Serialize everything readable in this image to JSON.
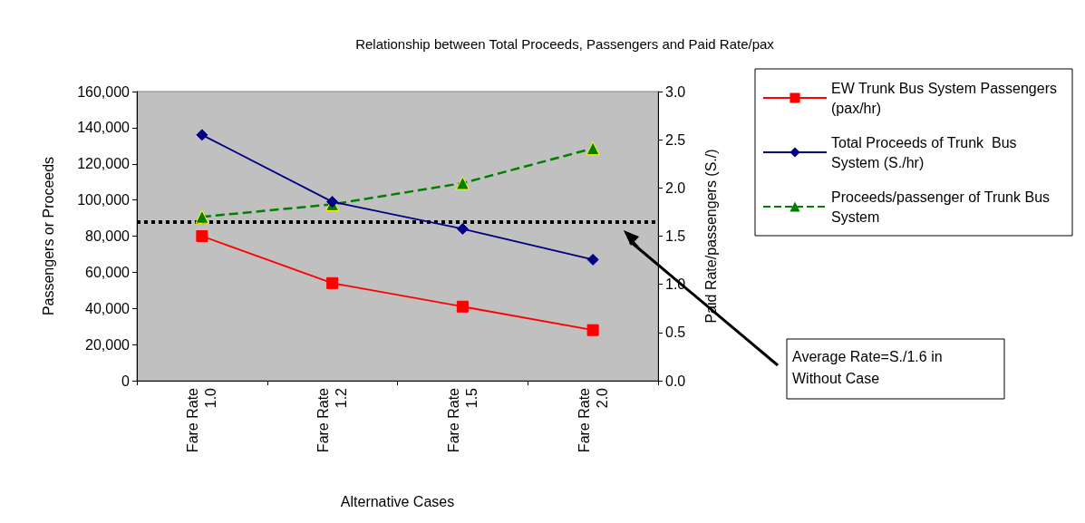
{
  "chart_data": {
    "type": "line",
    "title": "Relationship between Total Proceeds, Passengers and Paid Rate/pax",
    "xlabel": "Alternative Cases",
    "ylabel": "Passengers or Proceeds",
    "y2label": "Paid Rate/passengers (S./)",
    "categories": [
      "Fare Rate 1.0",
      "Fare Rate 1.2",
      "Fare Rate 1.5",
      "Fare Rate 2.0"
    ],
    "series": [
      {
        "name": "EW Trunk Bus System Passengers (pax/hr)",
        "color": "#ff0000",
        "marker": "square",
        "line_style": "solid",
        "values": [
          80000,
          54000,
          41000,
          28000
        ]
      },
      {
        "name": "Total Proceeds of Trunk  Bus System (S./hr)",
        "color": "#000080",
        "marker": "diamond",
        "line_style": "solid",
        "values": [
          136000,
          99000,
          84000,
          67000
        ]
      },
      {
        "name": "Proceeds/passenger of Trunk Bus System",
        "color": "#008000",
        "marker": "triangle",
        "line_style": "dashed",
        "axis": "y2",
        "values": [
          1.7,
          1.83,
          2.05,
          2.41
        ]
      }
    ],
    "ylim": [
      0,
      160000
    ],
    "yticks": [
      0,
      {
        "value": 20000,
        "label": "20,000"
      },
      {
        "value": 40000,
        "label": "40,000"
      },
      {
        "value": 60000,
        "label": "60,000"
      },
      {
        "value": 80000,
        "label": "80,000"
      },
      {
        "value": 100000,
        "label": "100,000"
      },
      {
        "value": 120000,
        "label": "120,000"
      },
      {
        "value": 140000,
        "label": "140,000"
      },
      {
        "value": 160000,
        "label": "160,000"
      }
    ],
    "y2lim": [
      0,
      3.0
    ],
    "y2ticks": [
      {
        "value": 0,
        "label": "0.0"
      },
      0.5,
      {
        "value": 1,
        "label": "1.0"
      },
      1.5,
      {
        "value": 2,
        "label": "2.0"
      },
      2.5,
      {
        "value": 3,
        "label": "3.0"
      }
    ],
    "ref_lines": [
      {
        "axis": "y2",
        "value": 1.65,
        "color": "#000000",
        "line_style": "dotted"
      }
    ],
    "annotations": [
      "Average Rate=S./1.6 in\nWithout Case"
    ],
    "grid": false,
    "legend": "right"
  }
}
